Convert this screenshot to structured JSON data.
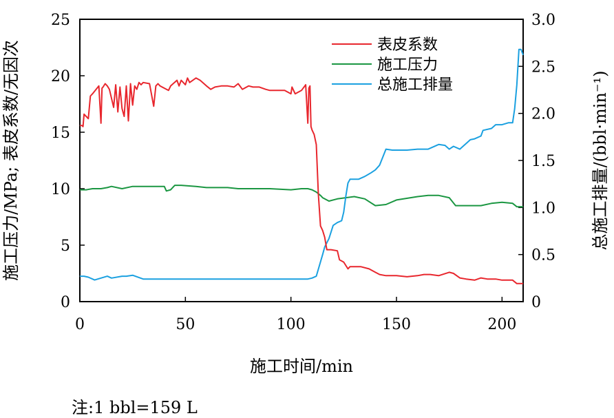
{
  "chart_data": {
    "type": "line",
    "xlabel": "施工时间/min",
    "ylabel_left": "施工压力/MPa; 表皮系数/无因次",
    "ylabel_right": "总施工排量/(bbl·min⁻¹)",
    "xlim": [
      0,
      210
    ],
    "ylim_left": [
      0,
      25
    ],
    "ylim_right": [
      0,
      3.0
    ],
    "x_ticks": [
      "0",
      "50",
      "100",
      "150",
      "200"
    ],
    "y_left_ticks": [
      "0",
      "5",
      "10",
      "15",
      "20",
      "25"
    ],
    "y_right_ticks": [
      "0",
      "0.5",
      "1.0",
      "1.5",
      "2.0",
      "2.5",
      "3.0"
    ],
    "grid": false,
    "legend_position": "top-right",
    "note": "注:1 bbl=159 L",
    "series": [
      {
        "name": "表皮系数",
        "axis": "left",
        "color": "#e8262d",
        "x": [
          0,
          1,
          1.5,
          2,
          4,
          5,
          6,
          9,
          10,
          10.5,
          11,
          12,
          13,
          14,
          16,
          17,
          18,
          19,
          20,
          21,
          22,
          23,
          24,
          25,
          26,
          27,
          28,
          29,
          30,
          33,
          35,
          36,
          37,
          38,
          42,
          43,
          46,
          47,
          48,
          50,
          51,
          52,
          55,
          57,
          60,
          62,
          64,
          67,
          70,
          73,
          75,
          77,
          80,
          82,
          85,
          88,
          90,
          93,
          97,
          100,
          100.5,
          102,
          105,
          107,
          108,
          108.5,
          109,
          109.5,
          110,
          111,
          112,
          113,
          114,
          115,
          116,
          117,
          119,
          122,
          123,
          125,
          127,
          128,
          130,
          133,
          137,
          140,
          142,
          145,
          150,
          155,
          160,
          163,
          166,
          170,
          175,
          177,
          180,
          183,
          187,
          190,
          193,
          197,
          200,
          203,
          205,
          207,
          209,
          210
        ],
        "y": [
          15.6,
          15.6,
          15.5,
          16.6,
          16.2,
          18.2,
          18.4,
          19.1,
          15.8,
          18.9,
          19.0,
          19.3,
          19.1,
          18.8,
          17.2,
          19.2,
          16.8,
          19.0,
          17.1,
          16.4,
          19.1,
          16.0,
          19.3,
          17.4,
          19.1,
          18.8,
          19.4,
          19.2,
          19.4,
          19.3,
          17.3,
          19.1,
          19.3,
          19.1,
          18.7,
          19.1,
          19.6,
          19.1,
          19.6,
          19.2,
          19.8,
          19.4,
          19.8,
          19.6,
          19.1,
          18.8,
          19.0,
          19.1,
          19.1,
          19.0,
          19.3,
          18.8,
          19.1,
          19.0,
          19.0,
          18.8,
          18.7,
          18.7,
          18.7,
          18.4,
          19.0,
          18.4,
          18.7,
          19.2,
          15.8,
          18.9,
          19.1,
          15.5,
          15.2,
          14.8,
          13.9,
          9.5,
          6.7,
          6.3,
          5.7,
          4.6,
          4.6,
          4.5,
          3.7,
          3.5,
          2.9,
          3.1,
          3.1,
          3.1,
          2.9,
          2.6,
          2.4,
          2.3,
          2.3,
          2.2,
          2.3,
          2.4,
          2.4,
          2.3,
          2.6,
          2.5,
          2.1,
          2.0,
          1.9,
          2.1,
          2.0,
          2.0,
          1.9,
          1.9,
          1.9,
          1.6,
          1.6,
          1.6
        ]
      },
      {
        "name": "施工压力",
        "axis": "left",
        "color": "#1a9641",
        "x": [
          0,
          3,
          6,
          10,
          13,
          15,
          20,
          25,
          30,
          35,
          40,
          41,
          43,
          45,
          48,
          55,
          60,
          65,
          70,
          75,
          80,
          90,
          100,
          105,
          108,
          110,
          112,
          114,
          115,
          118,
          122,
          130,
          135,
          140,
          145,
          150,
          160,
          165,
          170,
          175,
          178,
          183,
          190,
          195,
          200,
          205,
          207,
          210
        ],
        "y": [
          9.9,
          9.9,
          10.0,
          10.0,
          10.1,
          10.2,
          10.0,
          10.2,
          10.2,
          10.2,
          10.2,
          9.8,
          9.9,
          10.3,
          10.3,
          10.2,
          10.1,
          10.1,
          10.1,
          10.0,
          10.0,
          10.0,
          9.9,
          10.0,
          10.0,
          9.9,
          9.7,
          9.4,
          9.2,
          8.9,
          9.1,
          9.3,
          9.1,
          8.5,
          8.6,
          9.0,
          9.3,
          9.4,
          9.4,
          9.2,
          8.5,
          8.5,
          8.5,
          8.7,
          8.8,
          8.7,
          8.4,
          8.4
        ]
      },
      {
        "name": "总施工排量",
        "axis": "right",
        "color": "#1aa0e0",
        "x": [
          0,
          2,
          4,
          7,
          10,
          13,
          15,
          20,
          22,
          25,
          30,
          35,
          40,
          50,
          60,
          70,
          80,
          90,
          100,
          105,
          108,
          110,
          112,
          115,
          116,
          118,
          120,
          122,
          124,
          125,
          126,
          127,
          128,
          130,
          132,
          135,
          138,
          140,
          142,
          145,
          148,
          150,
          155,
          160,
          165,
          170,
          173,
          175,
          177,
          180,
          183,
          185,
          187,
          190,
          191,
          195,
          197,
          200,
          203,
          205,
          206,
          207,
          208,
          209,
          210
        ],
        "y": [
          0.27,
          0.27,
          0.26,
          0.23,
          0.25,
          0.27,
          0.25,
          0.27,
          0.27,
          0.28,
          0.24,
          0.24,
          0.24,
          0.24,
          0.24,
          0.24,
          0.24,
          0.24,
          0.24,
          0.24,
          0.24,
          0.25,
          0.27,
          0.5,
          0.58,
          0.67,
          0.81,
          0.84,
          0.86,
          0.95,
          1.12,
          1.26,
          1.3,
          1.3,
          1.3,
          1.33,
          1.37,
          1.4,
          1.45,
          1.62,
          1.61,
          1.61,
          1.61,
          1.62,
          1.62,
          1.67,
          1.66,
          1.62,
          1.65,
          1.62,
          1.68,
          1.72,
          1.73,
          1.76,
          1.82,
          1.84,
          1.88,
          1.88,
          1.9,
          1.9,
          2.05,
          2.3,
          2.68,
          2.68,
          2.62
        ]
      }
    ]
  }
}
